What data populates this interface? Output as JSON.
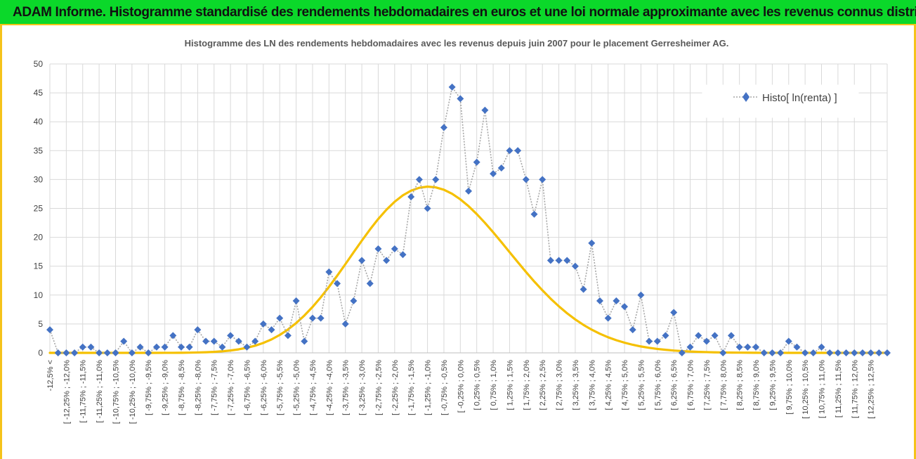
{
  "banner": {
    "title": "ADAM Informe. Histogramme standardisé des rendements hebdomadaires en euros et une loi normale approximante avec les revenus connus distribués"
  },
  "colors": {
    "banner_bg": "#0bd82a",
    "border": "#f5c31a",
    "series": "#4472c4",
    "curve": "#f5c000",
    "grid": "#d9d9d9",
    "connector": "#a6a6a6"
  },
  "chart_data": {
    "type": "line",
    "title": "Histogramme des LN des rendements hebdomadaires avec les revenus depuis juin 2007 pour le placement Gerresheimer  AG.",
    "xlabel": "",
    "ylabel": "",
    "ylim": [
      0,
      50
    ],
    "yticks": [
      0,
      5,
      10,
      15,
      20,
      25,
      30,
      35,
      40,
      45,
      50
    ],
    "grid": true,
    "legend": {
      "position": "top-right",
      "entries": [
        "Histo[ ln(renta) ]"
      ]
    },
    "categories": [
      "-12,5% <",
      "",
      "[ -12,25% ; -12,0%",
      "",
      "[ -11,75% ; -11,5%",
      "",
      "[ -11,25% ; -11,0%",
      "",
      "[ -10,75% ; -10,5%",
      "",
      "[ -10,25% ; -10,0%",
      "",
      "[ -9,75% ; -9,5%",
      "",
      "[ -9,25% ; -9,0%",
      "",
      "[ -8,75% ; -8,5%",
      "",
      "[ -8,25% ; -8,0%",
      "",
      "[ -7,75% ; -7,5%",
      "",
      "[ -7,25% ; -7,0%",
      "",
      "[ -6,75% ; -6,5%",
      "",
      "[ -6,25% ; -6,0%",
      "",
      "[ -5,75% ; -5,5%",
      "",
      "[ -5,25% ; -5,0%",
      "",
      "[ -4,75% ; -4,5%",
      "",
      "[ -4,25% ; -4,0%",
      "",
      "[ -3,75% ; -3,5%",
      "",
      "[ -3,25% ; -3,0%",
      "",
      "[ -2,75% ; -2,5%",
      "",
      "[ -2,25% ; -2,0%",
      "",
      "[ -1,75% ; -1,5%",
      "",
      "[ -1,25% ; -1,0%",
      "",
      "[ -0,75% ; -0,5%",
      "",
      "[ -0,25% ; 0,0%",
      "",
      "[ 0,25% ; 0,5%",
      "",
      "[ 0,75% ; 1,0%",
      "",
      "[ 1,25% ; 1,5%",
      "",
      "[ 1,75% ; 2,0%",
      "",
      "[ 2,25% ; 2,5%",
      "",
      "[ 2,75% ; 3,0%",
      "",
      "[ 3,25% ; 3,5%",
      "",
      "[ 3,75% ; 4,0%",
      "",
      "[ 4,25% ; 4,5%",
      "",
      "[ 4,75% ; 5,0%",
      "",
      "[ 5,25% ; 5,5%",
      "",
      "[ 5,75% ; 6,0%",
      "",
      "[ 6,25% ; 6,5%",
      "",
      "[ 6,75% ; 7,0%",
      "",
      "[ 7,25% ; 7,5%",
      "",
      "[ 7,75% ; 8,0%",
      "",
      "[ 8,25% ; 8,5%",
      "",
      "[ 8,75% ; 9,0%",
      "",
      "[ 9,25% ; 9,5%",
      "",
      "[ 9,75% ; 10,0%",
      "",
      "[ 10,25% ; 10,5%",
      "",
      "[ 10,75% ; 11,0%",
      "",
      "[ 11,25% ; 11,5%",
      "",
      "[ 11,75% ; 12,0%",
      "",
      "[ 12,25% ; 12,5%",
      "",
      ""
    ],
    "series": [
      {
        "name": "Histo[ ln(renta) ]",
        "style": "dotted-line-with-diamond-markers",
        "values": [
          4,
          0,
          0,
          0,
          1,
          1,
          0,
          0,
          0,
          2,
          0,
          1,
          0,
          1,
          1,
          3,
          1,
          1,
          4,
          2,
          2,
          1,
          3,
          2,
          1,
          2,
          5,
          4,
          6,
          3,
          9,
          2,
          6,
          6,
          14,
          12,
          5,
          9,
          16,
          12,
          18,
          16,
          18,
          17,
          27,
          30,
          25,
          30,
          39,
          46,
          44,
          28,
          33,
          42,
          31,
          32,
          35,
          35,
          30,
          24,
          30,
          16,
          16,
          16,
          15,
          11,
          19,
          9,
          6,
          9,
          8,
          4,
          10,
          2,
          2,
          3,
          7,
          0,
          1,
          3,
          2,
          3,
          0,
          3,
          1,
          1,
          1,
          0,
          0,
          0,
          2,
          1,
          0,
          0,
          1,
          0,
          0,
          0,
          0,
          0,
          0,
          0,
          0
        ]
      },
      {
        "name": "",
        "style": "smooth-line",
        "values": [
          0.0,
          0.0,
          0.0,
          0.0,
          0.0,
          0.0,
          0.0,
          0.0,
          0.0,
          0.0,
          0.0,
          0.0,
          0.0,
          0.0,
          0.01,
          0.01,
          0.02,
          0.04,
          0.07,
          0.11,
          0.17,
          0.27,
          0.41,
          0.61,
          0.88,
          1.24,
          1.72,
          2.33,
          3.1,
          4.04,
          5.16,
          6.46,
          7.95,
          9.61,
          11.42,
          13.35,
          15.36,
          17.4,
          19.42,
          21.36,
          23.17,
          24.78,
          26.16,
          27.26,
          28.07,
          28.57,
          28.77,
          28.64,
          28.23,
          27.53,
          26.57,
          25.39,
          24.02,
          22.5,
          20.87,
          19.17,
          17.43,
          15.7,
          14.0,
          12.36,
          10.82,
          9.38,
          8.06,
          6.86,
          5.79,
          4.84,
          4.02,
          3.31,
          2.7,
          2.19,
          1.76,
          1.4,
          1.11,
          0.87,
          0.68,
          0.53,
          0.4,
          0.31,
          0.23,
          0.17,
          0.13,
          0.09,
          0.07,
          0.05,
          0.04,
          0.03,
          0.02,
          0.01,
          0.01,
          0.01,
          0.0,
          0.0,
          0.0,
          0.0,
          0.0,
          0.0,
          0.0,
          0.0,
          0.0,
          0.0,
          0.0,
          0.0,
          0.0
        ]
      }
    ]
  }
}
